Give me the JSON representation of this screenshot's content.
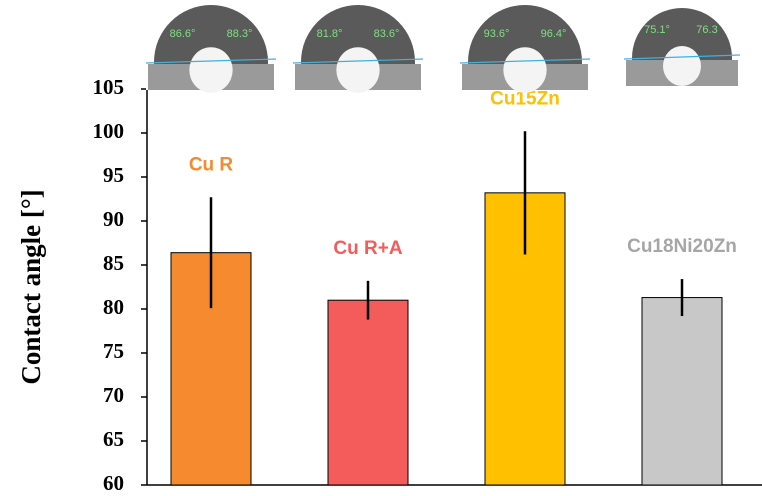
{
  "chart_data": {
    "type": "bar",
    "ylabel": "Contact angle [°]",
    "categories": [
      "Cu R",
      "Cu R+A",
      "Cu15Zn",
      "Cu18Ni20Zn"
    ],
    "series": [
      {
        "values": [
          86.4,
          81.0,
          93.2,
          81.3
        ],
        "errors": [
          6.3,
          2.2,
          7.0,
          2.1
        ],
        "colors": [
          "#f58a2e",
          "#f45b5b",
          "#ffc000",
          "#c8c8c8"
        ],
        "label_colors": [
          "#f58a2e",
          "#f45b5b",
          "#ffc000",
          "#a6a6a6"
        ]
      }
    ],
    "droplet_angles": [
      [
        "86.6°",
        "88.3°"
      ],
      [
        "81.8°",
        "83.6°"
      ],
      [
        "93.6°",
        "96.4°"
      ],
      [
        "75.1°",
        "76.3"
      ]
    ],
    "ylim": [
      60,
      105
    ],
    "yticks": [
      60,
      65,
      70,
      75,
      80,
      85,
      90,
      95,
      100,
      105
    ],
    "grid": false
  }
}
